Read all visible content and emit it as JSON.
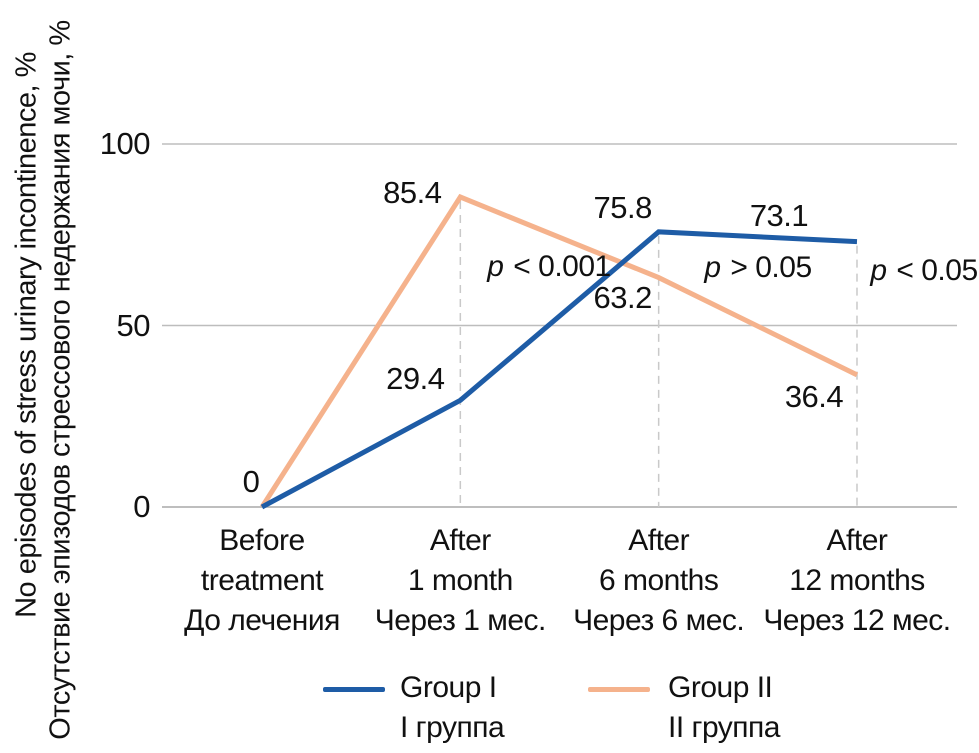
{
  "chart_data": {
    "type": "line",
    "y_axis_title_en": "No episodes of stress urinary incontinence, %",
    "y_axis_title_ru": "Отсутствие эпизодов стрессового недержания мочи, %",
    "y_ticks": [
      0,
      50,
      100
    ],
    "ylim": [
      0,
      100
    ],
    "grid": "horizontal",
    "legend_position": "bottom",
    "categories": [
      [
        "Before",
        "treatment",
        "До лечения"
      ],
      [
        "After",
        "1 month",
        "Через 1 мес."
      ],
      [
        "After",
        "6 months",
        "Через 6 мес."
      ],
      [
        "After",
        "12 months",
        "Через 12 мес."
      ]
    ],
    "origin_label": "0",
    "series": [
      {
        "name": "Group I",
        "name_ru": "I группа",
        "color": "#1e5ca6",
        "values": [
          0,
          29.4,
          75.8,
          73.1
        ],
        "point_labels": [
          "",
          "29.4",
          "75.8",
          "73.1"
        ]
      },
      {
        "name": "Group II",
        "name_ru": "II группа",
        "color": "#f5b28c",
        "values": [
          0,
          85.4,
          63.2,
          36.4
        ],
        "point_labels": [
          "",
          "85.4",
          "63.2",
          "36.4"
        ]
      }
    ],
    "annotations": [
      {
        "text": "p < 0.001"
      },
      {
        "text": "p > 0.05"
      },
      {
        "text": "p < 0.05"
      }
    ],
    "colors": {
      "gridline": "#bdbdbd",
      "axis_line": "#a9a9a9",
      "dashed_guide": "#c9c9c9",
      "text": "#111111"
    }
  }
}
